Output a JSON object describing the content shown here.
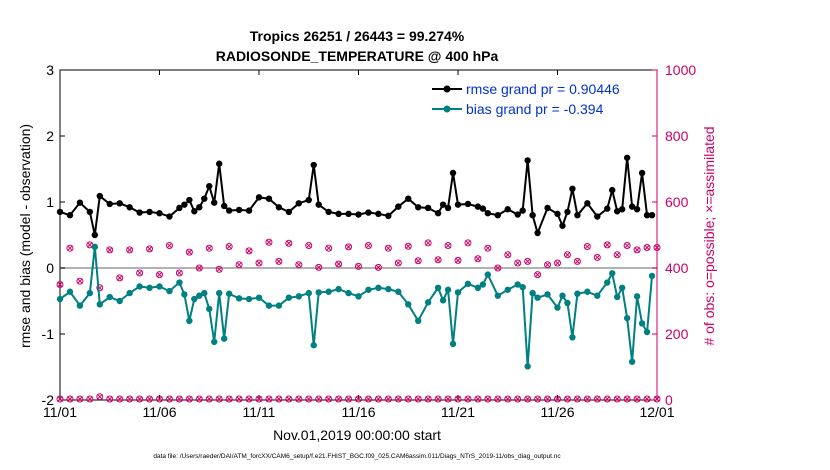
{
  "chart_data": {
    "type": "line",
    "title": "Tropics 26251 / 26443 = 99.274%",
    "subtitle": "RADIOSONDE_TEMPERATURE @ 400 hPa",
    "xlabel": "Nov.01,2019 00:00:00 start",
    "ylabel": "rmse and bias (model - observation)",
    "y2label": "# of obs: o=possible; ×=assimilated",
    "footnote": "data file: /Users/raeder/DAI/ATM_forcXX/CAM6_setup/f.e21.FHIST_BGC.f09_025.CAM6assim.011/Diags_NTrS_2019-11/obs_diag_output.nc",
    "xlim": [
      1,
      31
    ],
    "xticks": [
      1,
      6,
      11,
      16,
      21,
      26,
      31
    ],
    "xtick_labels": [
      "11/01",
      "11/06",
      "11/11",
      "11/16",
      "11/21",
      "11/26",
      "12/01"
    ],
    "ylim": [
      -2,
      3
    ],
    "yticks": [
      "-2",
      "-1",
      "0",
      "1",
      "2",
      "3"
    ],
    "y2lim": [
      0,
      1000
    ],
    "y2ticks": [
      "0",
      "200",
      "400",
      "600",
      "800",
      "1000"
    ],
    "legend": {
      "placement": "top-right",
      "rmse_label": "rmse grand pr = 0.90446",
      "bias_label": "bias grand pr = -0.394"
    },
    "colors": {
      "rmse": "#000000",
      "bias": "#008080",
      "obs": "#cc0066",
      "legend_text": "#0033cc",
      "zero_line": "#999999"
    },
    "series": [
      {
        "name": "rmse",
        "x": [
          1,
          1.5,
          2,
          2.5,
          2.75,
          3,
          3.5,
          4,
          4.5,
          5,
          5.5,
          6,
          6.5,
          7,
          7.25,
          7.5,
          7.75,
          8,
          8.25,
          8.5,
          8.75,
          9,
          9.25,
          9.5,
          10,
          10.5,
          11,
          11.5,
          12,
          12.5,
          13,
          13.5,
          13.75,
          14,
          14.5,
          15,
          15.5,
          16,
          16.5,
          17,
          17.5,
          18,
          18.5,
          19,
          19.5,
          20,
          20.25,
          20.5,
          20.75,
          21,
          21.5,
          22,
          22.25,
          22.5,
          23,
          23.5,
          24,
          24.25,
          24.5,
          24.75,
          25,
          25.5,
          26,
          26.25,
          26.5,
          26.75,
          27,
          27.5,
          28,
          28.5,
          28.75,
          29,
          29.25,
          29.5,
          29.75,
          30,
          30.25,
          30.5,
          30.75
        ],
        "values": [
          0.85,
          0.8,
          0.99,
          0.85,
          0.5,
          1.09,
          0.97,
          0.98,
          0.92,
          0.84,
          0.85,
          0.83,
          0.78,
          0.91,
          0.96,
          1.03,
          0.86,
          0.92,
          1.05,
          1.24,
          0.99,
          1.58,
          0.94,
          0.87,
          0.88,
          0.87,
          1.07,
          1.05,
          0.92,
          0.85,
          0.98,
          1.03,
          1.56,
          0.96,
          0.85,
          0.82,
          0.82,
          0.81,
          0.84,
          0.82,
          0.79,
          0.93,
          1.05,
          0.92,
          0.91,
          0.83,
          0.96,
          0.91,
          1.44,
          0.96,
          0.97,
          0.93,
          0.9,
          0.83,
          0.8,
          0.89,
          0.81,
          0.87,
          1.63,
          0.8,
          0.53,
          0.91,
          0.82,
          0.64,
          0.85,
          1.2,
          0.8,
          0.98,
          0.78,
          0.9,
          1.18,
          0.86,
          0.89,
          1.67,
          0.93,
          0.89,
          1.44,
          0.8,
          0.8
        ]
      },
      {
        "name": "bias",
        "x": [
          1,
          1.5,
          2,
          2.5,
          2.75,
          3,
          3.5,
          4,
          4.5,
          5,
          5.5,
          6,
          6.5,
          7,
          7.25,
          7.5,
          7.75,
          8,
          8.25,
          8.5,
          8.75,
          9,
          9.25,
          9.5,
          10,
          10.5,
          11,
          11.5,
          12,
          12.5,
          13,
          13.5,
          13.75,
          14,
          14.5,
          15,
          15.5,
          16,
          16.5,
          17,
          17.5,
          18,
          18.5,
          19,
          19.5,
          20,
          20.25,
          20.5,
          20.75,
          21,
          21.5,
          22,
          22.25,
          22.5,
          23,
          23.5,
          24,
          24.25,
          24.5,
          24.75,
          25,
          25.5,
          26,
          26.25,
          26.5,
          26.75,
          27,
          27.5,
          28,
          28.5,
          28.75,
          29,
          29.25,
          29.5,
          29.75,
          30,
          30.25,
          30.5,
          30.75
        ],
        "values": [
          -0.47,
          -0.36,
          -0.57,
          -0.38,
          0.32,
          -0.55,
          -0.44,
          -0.5,
          -0.38,
          -0.28,
          -0.3,
          -0.28,
          -0.35,
          -0.22,
          -0.4,
          -0.8,
          -0.47,
          -0.42,
          -0.38,
          -0.62,
          -1.12,
          -0.38,
          -1.07,
          -0.39,
          -0.46,
          -0.47,
          -0.45,
          -0.57,
          -0.57,
          -0.45,
          -0.43,
          -0.38,
          -1.17,
          -0.37,
          -0.36,
          -0.32,
          -0.38,
          -0.43,
          -0.33,
          -0.3,
          -0.32,
          -0.36,
          -0.55,
          -0.8,
          -0.52,
          -0.3,
          -0.49,
          -0.33,
          -1.15,
          -0.37,
          -0.24,
          -0.3,
          -0.25,
          -0.1,
          -0.42,
          -0.33,
          -0.25,
          -0.29,
          -1.49,
          -0.38,
          -0.45,
          -0.4,
          -0.6,
          -0.42,
          -0.53,
          -1.05,
          -0.39,
          -0.36,
          -0.42,
          -0.22,
          -0.08,
          -0.44,
          -0.3,
          -0.76,
          -1.42,
          -0.43,
          -0.84,
          -0.97,
          -0.12
        ]
      }
    ],
    "obs_possible": {
      "x": [
        1,
        1.5,
        2,
        2.5,
        3,
        3.5,
        4,
        4.5,
        5,
        5.5,
        6,
        6.5,
        7,
        7.5,
        8,
        8.5,
        9,
        9.5,
        10,
        10.5,
        11,
        11.5,
        12,
        12.5,
        13,
        13.5,
        14,
        14.5,
        15,
        15.5,
        16,
        16.5,
        17,
        17.5,
        18,
        18.5,
        19,
        19.5,
        20,
        20.5,
        21,
        21.5,
        22,
        22.5,
        23,
        23.5,
        24,
        24.5,
        25,
        25.5,
        26,
        26.5,
        27,
        27.5,
        28,
        28.5,
        29,
        29.5,
        30,
        30.5,
        31
      ],
      "values": [
        350,
        460,
        360,
        470,
        340,
        455,
        370,
        455,
        385,
        458,
        380,
        468,
        385,
        448,
        400,
        460,
        396,
        465,
        410,
        452,
        415,
        478,
        420,
        475,
        410,
        468,
        402,
        460,
        412,
        464,
        405,
        468,
        402,
        460,
        415,
        466,
        422,
        476,
        425,
        468,
        423,
        476,
        428,
        460,
        400,
        440,
        415,
        420,
        380,
        410,
        415,
        440,
        420,
        465,
        432,
        470,
        440,
        468,
        455,
        462,
        462
      ]
    },
    "obs_assim_bottom": {
      "x": [
        1,
        1.5,
        2,
        2.5,
        3,
        3.5,
        4,
        4.5,
        5,
        5.5,
        6,
        6.5,
        7,
        7.5,
        8,
        8.5,
        9,
        9.5,
        10,
        10.5,
        11,
        11.5,
        12,
        12.5,
        13,
        13.5,
        14,
        14.5,
        15,
        15.5,
        16,
        16.5,
        17,
        17.5,
        18,
        18.5,
        19,
        19.5,
        20,
        20.5,
        21,
        21.5,
        22,
        22.5,
        23,
        23.5,
        24,
        24.5,
        25,
        25.5,
        26,
        26.5,
        27,
        27.5,
        28,
        28.5,
        29,
        29.5,
        30,
        30.5,
        31
      ],
      "values": [
        3,
        3,
        3,
        3,
        10,
        3,
        3,
        3,
        3,
        3,
        3,
        3,
        3,
        3,
        3,
        3,
        3,
        3,
        3,
        3,
        3,
        3,
        3,
        3,
        3,
        3,
        3,
        3,
        3,
        3,
        3,
        3,
        3,
        3,
        3,
        3,
        3,
        3,
        3,
        3,
        3,
        3,
        3,
        3,
        3,
        3,
        3,
        3,
        3,
        3,
        3,
        3,
        3,
        3,
        3,
        3,
        3,
        3,
        3,
        3,
        3
      ]
    }
  }
}
